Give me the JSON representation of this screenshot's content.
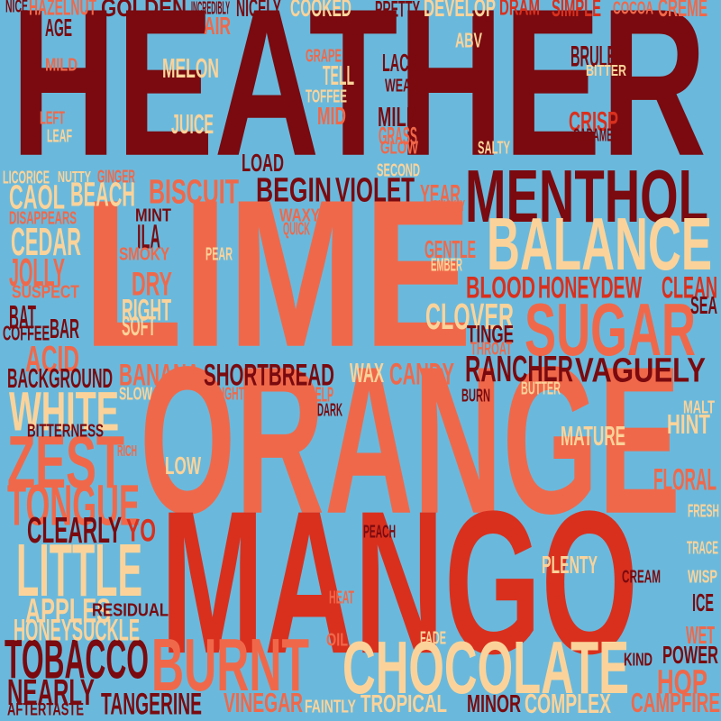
{
  "palette": {
    "background": "#6ab9dc",
    "dark_red": "#7a0a0f",
    "red": "#d9301e",
    "coral": "#f0684a",
    "peach": "#fbd39a"
  },
  "words": [
    {
      "text": "HEATHER",
      "color": "dark_red"
    },
    {
      "text": "LIME",
      "color": "coral"
    },
    {
      "text": "ORANGE",
      "color": "coral"
    },
    {
      "text": "MANGO",
      "color": "red"
    },
    {
      "text": "MENTHOL",
      "color": "dark_red"
    },
    {
      "text": "BALANCE",
      "color": "peach"
    },
    {
      "text": "SUGAR",
      "color": "coral"
    },
    {
      "text": "CHOCOLATE",
      "color": "peach"
    },
    {
      "text": "BURNT",
      "color": "coral"
    },
    {
      "text": "TOBACCO",
      "color": "dark_red"
    },
    {
      "text": "LITTLE",
      "color": "peach"
    },
    {
      "text": "ZEST",
      "color": "coral"
    },
    {
      "text": "TONGUE",
      "color": "coral"
    },
    {
      "text": "WHITE",
      "color": "peach"
    },
    {
      "text": "SHORTBREAD",
      "color": "dark_red"
    },
    {
      "text": "RANCHER",
      "color": "dark_red"
    },
    {
      "text": "VAGUELY",
      "color": "dark_red"
    },
    {
      "text": "BISCUIT",
      "color": "coral"
    },
    {
      "text": "BEGIN",
      "color": "dark_red"
    },
    {
      "text": "VIOLET",
      "color": "dark_red"
    },
    {
      "text": "CLEARLY",
      "color": "dark_red"
    },
    {
      "text": "NEARLY",
      "color": "dark_red"
    },
    {
      "text": "TANGERINE",
      "color": "dark_red"
    },
    {
      "text": "HONEYSUCKLE",
      "color": "peach"
    },
    {
      "text": "APPLES",
      "color": "peach"
    },
    {
      "text": "BLOOD",
      "color": "red"
    },
    {
      "text": "HONEYDEW",
      "color": "red"
    },
    {
      "text": "CLEAN",
      "color": "red"
    },
    {
      "text": "CLOVER",
      "color": "peach"
    },
    {
      "text": "CEDAR",
      "color": "peach"
    },
    {
      "text": "JOLLY",
      "color": "coral"
    },
    {
      "text": "BEACH",
      "color": "peach"
    },
    {
      "text": "CAOL",
      "color": "peach"
    },
    {
      "text": "ILA",
      "color": "dark_red"
    },
    {
      "text": "DRY",
      "color": "coral"
    },
    {
      "text": "RIGHT",
      "color": "peach"
    },
    {
      "text": "SOFT",
      "color": "peach"
    },
    {
      "text": "BAT",
      "color": "dark_red"
    },
    {
      "text": "BAR",
      "color": "dark_red"
    },
    {
      "text": "ACID",
      "color": "coral"
    },
    {
      "text": "COFFEE",
      "color": "dark_red"
    },
    {
      "text": "BACKGROUND",
      "color": "dark_red"
    },
    {
      "text": "BANANA",
      "color": "coral"
    },
    {
      "text": "CANDY",
      "color": "coral"
    },
    {
      "text": "WAX",
      "color": "peach"
    },
    {
      "text": "TINGE",
      "color": "dark_red"
    },
    {
      "text": "FLORAL",
      "color": "coral"
    },
    {
      "text": "MATURE",
      "color": "peach"
    },
    {
      "text": "HINT",
      "color": "peach"
    },
    {
      "text": "PLENTY",
      "color": "peach"
    },
    {
      "text": "ICE",
      "color": "dark_red"
    },
    {
      "text": "POWER",
      "color": "dark_red"
    },
    {
      "text": "HOP",
      "color": "coral"
    },
    {
      "text": "WET",
      "color": "coral"
    },
    {
      "text": "CAMPFIRE",
      "color": "coral"
    },
    {
      "text": "COMPLEX",
      "color": "peach"
    },
    {
      "text": "MINOR",
      "color": "dark_red"
    },
    {
      "text": "TROPICAL",
      "color": "peach"
    },
    {
      "text": "VINEGAR",
      "color": "coral"
    },
    {
      "text": "YO",
      "color": "red"
    },
    {
      "text": "LOW",
      "color": "peach"
    },
    {
      "text": "GENTLE",
      "color": "coral"
    },
    {
      "text": "YEAR",
      "color": "coral"
    },
    {
      "text": "LOAD",
      "color": "dark_red"
    },
    {
      "text": "JUICE",
      "color": "peach"
    },
    {
      "text": "MELON",
      "color": "peach"
    },
    {
      "text": "MILK",
      "color": "dark_red"
    },
    {
      "text": "GRASS",
      "color": "coral"
    },
    {
      "text": "LACK",
      "color": "dark_red"
    },
    {
      "text": "CRISP",
      "color": "red"
    },
    {
      "text": "BRULEE",
      "color": "dark_red"
    },
    {
      "text": "TELL",
      "color": "peach"
    },
    {
      "text": "MID",
      "color": "coral"
    },
    {
      "text": "AGE",
      "color": "dark_red"
    },
    {
      "text": "AIR",
      "color": "coral"
    },
    {
      "text": "HAZELNUT",
      "color": "coral"
    },
    {
      "text": "GOLDEN",
      "color": "dark_red"
    },
    {
      "text": "INCREDIBLY",
      "color": "dark_red"
    },
    {
      "text": "NICELY",
      "color": "dark_red"
    },
    {
      "text": "COOKED",
      "color": "peach"
    },
    {
      "text": "PRETTY",
      "color": "dark_red"
    },
    {
      "text": "DEVELOP",
      "color": "peach"
    },
    {
      "text": "DRAM",
      "color": "red"
    },
    {
      "text": "SIMPLE",
      "color": "red"
    },
    {
      "text": "COCOA",
      "color": "coral"
    },
    {
      "text": "CREME",
      "color": "coral"
    },
    {
      "text": "NICE",
      "color": "dark_red"
    },
    {
      "text": "ABV",
      "color": "peach"
    },
    {
      "text": "MILD",
      "color": "coral"
    },
    {
      "text": "WEAK",
      "color": "dark_red"
    },
    {
      "text": "BITTER",
      "color": "peach"
    },
    {
      "text": "TOFFEE",
      "color": "peach"
    },
    {
      "text": "GRAPE",
      "color": "coral"
    },
    {
      "text": "LEFT",
      "color": "coral"
    },
    {
      "text": "LEAF",
      "color": "peach"
    },
    {
      "text": "CARAMEL",
      "color": "dark_red"
    },
    {
      "text": "SALTY",
      "color": "peach"
    },
    {
      "text": "GLOW",
      "color": "coral"
    },
    {
      "text": "SECOND",
      "color": "peach"
    },
    {
      "text": "LICORICE",
      "color": "peach"
    },
    {
      "text": "NUTTY",
      "color": "peach"
    },
    {
      "text": "GINGER",
      "color": "coral"
    },
    {
      "text": "QUICKLY",
      "color": "coral"
    },
    {
      "text": "DISAPPEARS",
      "color": "coral"
    },
    {
      "text": "MINT",
      "color": "dark_red"
    },
    {
      "text": "WAXY",
      "color": "coral"
    },
    {
      "text": "QUICK",
      "color": "coral"
    },
    {
      "text": "SMOKY",
      "color": "coral"
    },
    {
      "text": "PEAR",
      "color": "peach"
    },
    {
      "text": "SUSPECT",
      "color": "coral"
    },
    {
      "text": "EMBER",
      "color": "peach"
    },
    {
      "text": "SEA",
      "color": "dark_red"
    },
    {
      "text": "THROAT",
      "color": "coral"
    },
    {
      "text": "SLOW",
      "color": "peach"
    },
    {
      "text": "SLIGHT",
      "color": "coral"
    },
    {
      "text": "HELP",
      "color": "coral"
    },
    {
      "text": "DARK",
      "color": "dark_red"
    },
    {
      "text": "BURN",
      "color": "dark_red"
    },
    {
      "text": "BUTTER",
      "color": "peach"
    },
    {
      "text": "MALT",
      "color": "peach"
    },
    {
      "text": "BITTERNESS",
      "color": "dark_red"
    },
    {
      "text": "RICH",
      "color": "coral"
    },
    {
      "text": "PEACH",
      "color": "dark_red"
    },
    {
      "text": "FRESH",
      "color": "peach"
    },
    {
      "text": "TRACE",
      "color": "peach"
    },
    {
      "text": "CREAM",
      "color": "dark_red"
    },
    {
      "text": "WISP",
      "color": "peach"
    },
    {
      "text": "RESIDUAL",
      "color": "dark_red"
    },
    {
      "text": "HEAT",
      "color": "coral"
    },
    {
      "text": "OIL",
      "color": "coral"
    },
    {
      "text": "FADE",
      "color": "peach"
    },
    {
      "text": "KIND",
      "color": "dark_red"
    },
    {
      "text": "FAINTLY",
      "color": "peach"
    },
    {
      "text": "AFTERTASTE",
      "color": "dark_red"
    }
  ]
}
